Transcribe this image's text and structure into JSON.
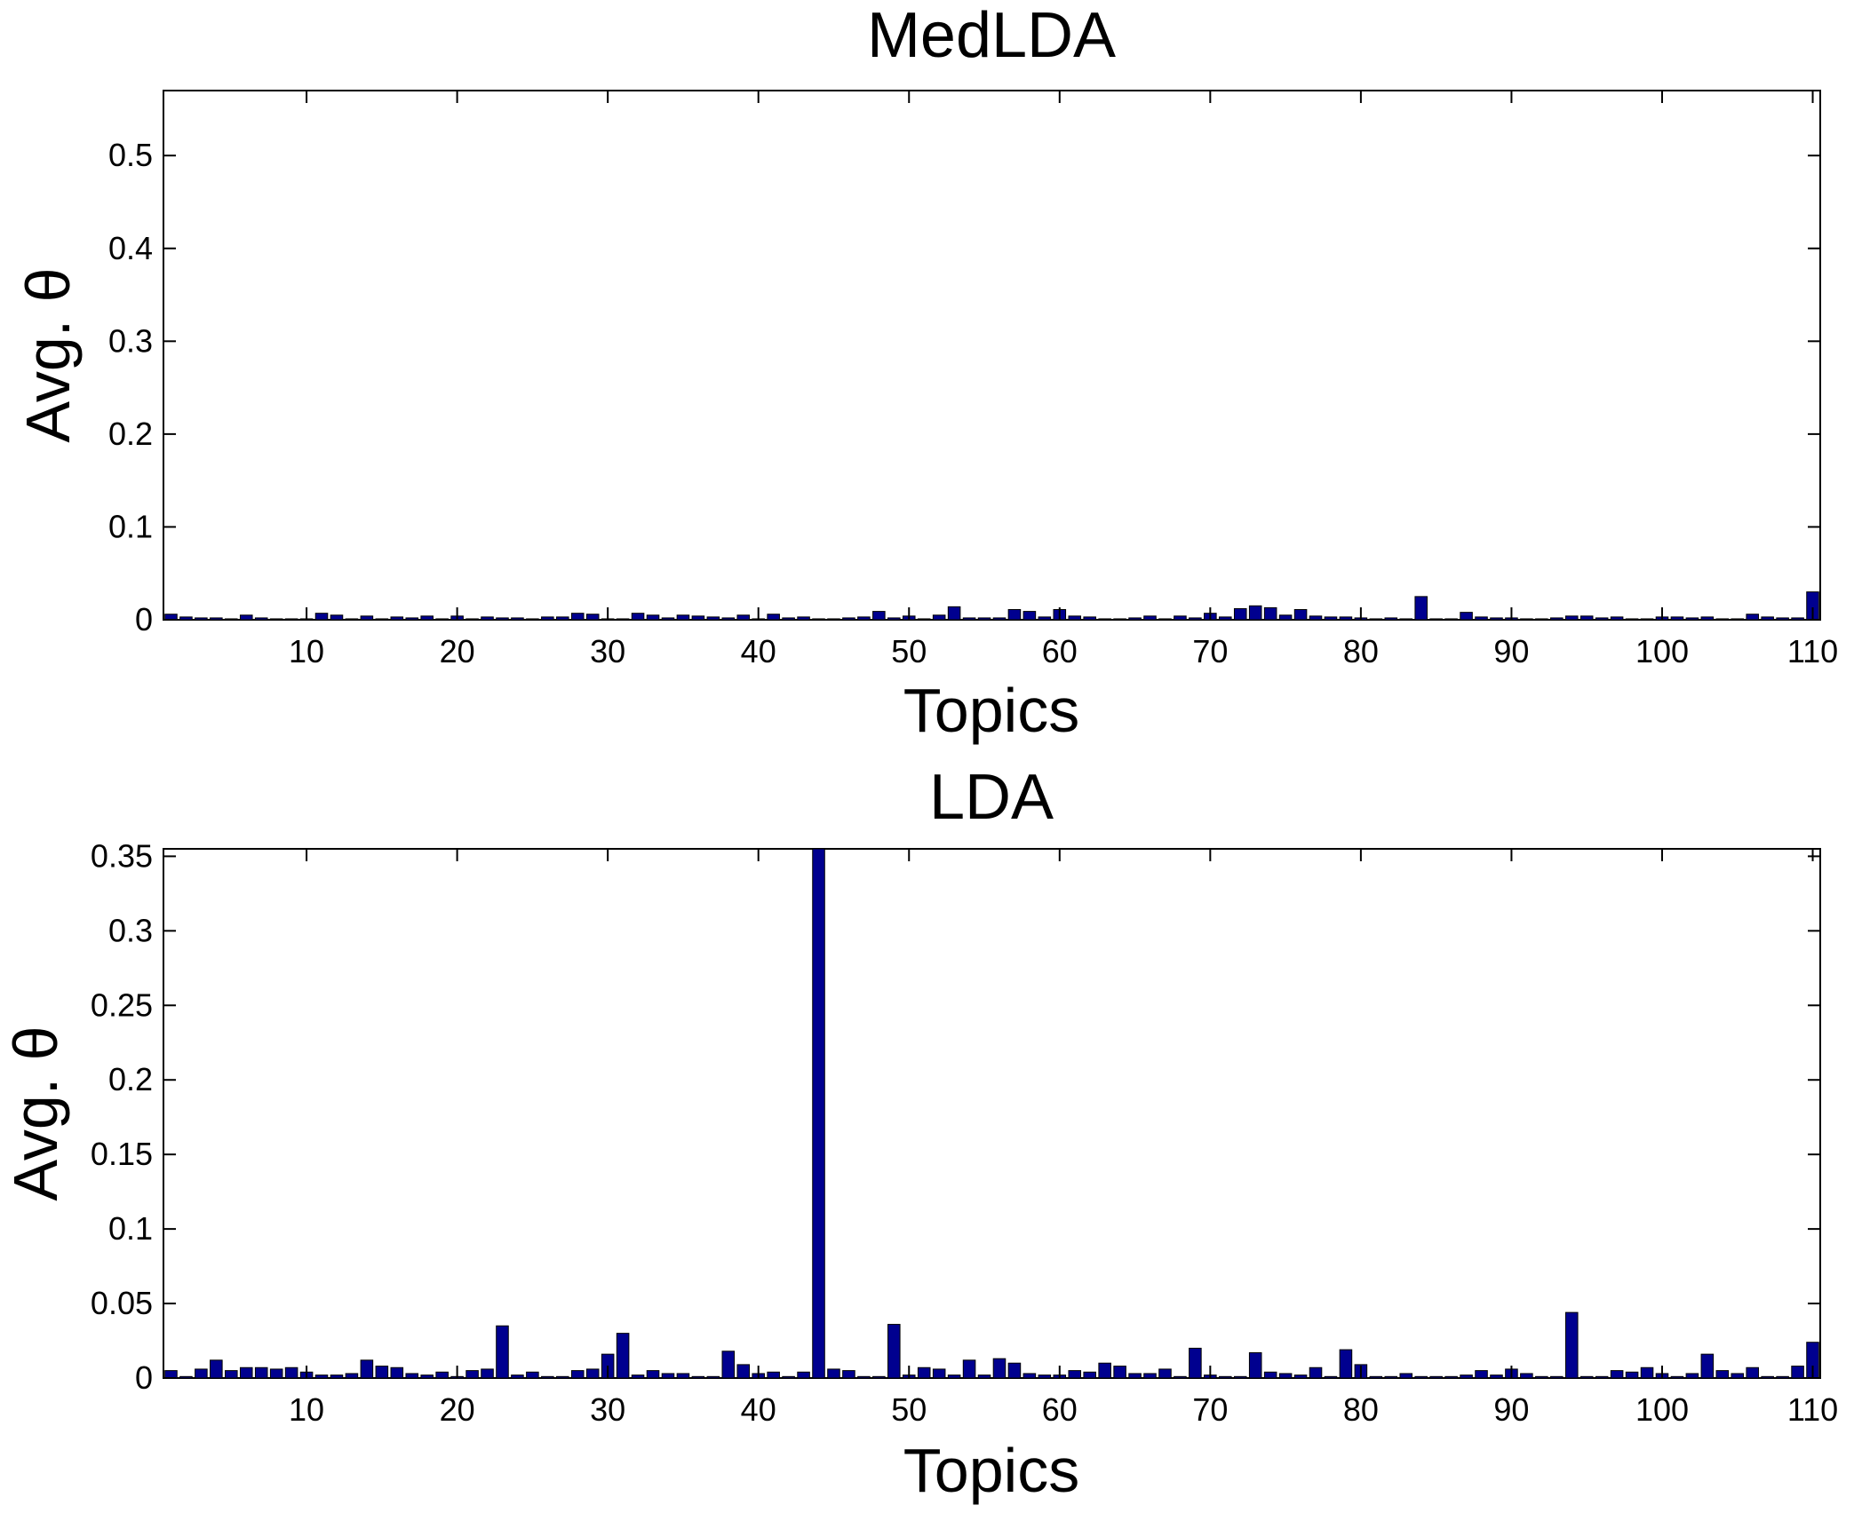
{
  "chart_data": [
    {
      "type": "bar",
      "title": "MedLDA",
      "xlabel": "Topics",
      "ylabel": "Avg. θ",
      "xlim": [
        0.5,
        110.5
      ],
      "ylim": [
        0,
        0.57
      ],
      "xticks": [
        10,
        20,
        30,
        40,
        50,
        60,
        70,
        80,
        90,
        100,
        110
      ],
      "xtick_labels": [
        "10",
        "20",
        "30",
        "40",
        "50",
        "60",
        "70",
        "80",
        "90",
        "100",
        "110"
      ],
      "yticks": [
        0,
        0.1,
        0.2,
        0.3,
        0.4,
        0.5
      ],
      "ytick_labels": [
        "0",
        "0.1",
        "0.2",
        "0.3",
        "0.4",
        "0.5"
      ],
      "grid": false,
      "bar_color": "#00008f",
      "x": [
        1,
        2,
        3,
        4,
        5,
        6,
        7,
        8,
        9,
        10,
        11,
        12,
        13,
        14,
        15,
        16,
        17,
        18,
        19,
        20,
        21,
        22,
        23,
        24,
        25,
        26,
        27,
        28,
        29,
        30,
        31,
        32,
        33,
        34,
        35,
        36,
        37,
        38,
        39,
        40,
        41,
        42,
        43,
        44,
        45,
        46,
        47,
        48,
        49,
        50,
        51,
        52,
        53,
        54,
        55,
        56,
        57,
        58,
        59,
        60,
        61,
        62,
        63,
        64,
        65,
        66,
        67,
        68,
        69,
        70,
        71,
        72,
        73,
        74,
        75,
        76,
        77,
        78,
        79,
        80,
        81,
        82,
        83,
        84,
        85,
        86,
        87,
        88,
        89,
        90,
        91,
        92,
        93,
        94,
        95,
        96,
        97,
        98,
        99,
        100,
        101,
        102,
        103,
        104,
        105,
        106,
        107,
        108,
        109,
        110
      ],
      "values": [
        0.006,
        0.003,
        0.002,
        0.002,
        0.001,
        0.005,
        0.002,
        0.001,
        0.001,
        0.001,
        0.007,
        0.005,
        0.001,
        0.004,
        0.001,
        0.003,
        0.002,
        0.004,
        0.001,
        0.004,
        0.001,
        0.003,
        0.002,
        0.002,
        0.001,
        0.003,
        0.003,
        0.007,
        0.006,
        0.001,
        0.001,
        0.007,
        0.005,
        0.002,
        0.005,
        0.004,
        0.003,
        0.002,
        0.005,
        0.001,
        0.006,
        0.002,
        0.003,
        0.001,
        0.001,
        0.002,
        0.003,
        0.009,
        0.002,
        0.004,
        0.001,
        0.005,
        0.014,
        0.002,
        0.002,
        0.002,
        0.011,
        0.009,
        0.003,
        0.011,
        0.004,
        0.003,
        0.001,
        0.001,
        0.002,
        0.004,
        0.001,
        0.004,
        0.002,
        0.007,
        0.003,
        0.012,
        0.015,
        0.013,
        0.005,
        0.011,
        0.004,
        0.003,
        0.003,
        0.002,
        0.001,
        0.002,
        0.001,
        0.025,
        0.001,
        0.001,
        0.008,
        0.003,
        0.002,
        0.002,
        0.001,
        0.001,
        0.002,
        0.004,
        0.004,
        0.002,
        0.003,
        0.001,
        0.001,
        0.003,
        0.003,
        0.002,
        0.003,
        0.001,
        0.001,
        0.006,
        0.003,
        0.002,
        0.002,
        0.03
      ]
    },
    {
      "type": "bar",
      "title": "LDA",
      "xlabel": "Topics",
      "ylabel": "Avg. θ",
      "xlim": [
        0.5,
        110.5
      ],
      "ylim": [
        0,
        0.355
      ],
      "xticks": [
        10,
        20,
        30,
        40,
        50,
        60,
        70,
        80,
        90,
        100,
        110
      ],
      "xtick_labels": [
        "10",
        "20",
        "30",
        "40",
        "50",
        "60",
        "70",
        "80",
        "90",
        "100",
        "110"
      ],
      "yticks": [
        0,
        0.05,
        0.1,
        0.15,
        0.2,
        0.25,
        0.3,
        0.35
      ],
      "ytick_labels": [
        "0",
        "0.05",
        "0.1",
        "0.15",
        "0.2",
        "0.25",
        "0.3",
        "0.35"
      ],
      "grid": false,
      "bar_color": "#00008f",
      "x": [
        1,
        2,
        3,
        4,
        5,
        6,
        7,
        8,
        9,
        10,
        11,
        12,
        13,
        14,
        15,
        16,
        17,
        18,
        19,
        20,
        21,
        22,
        23,
        24,
        25,
        26,
        27,
        28,
        29,
        30,
        31,
        32,
        33,
        34,
        35,
        36,
        37,
        38,
        39,
        40,
        41,
        42,
        43,
        44,
        45,
        46,
        47,
        48,
        49,
        50,
        51,
        52,
        53,
        54,
        55,
        56,
        57,
        58,
        59,
        60,
        61,
        62,
        63,
        64,
        65,
        66,
        67,
        68,
        69,
        70,
        71,
        72,
        73,
        74,
        75,
        76,
        77,
        78,
        79,
        80,
        81,
        82,
        83,
        84,
        85,
        86,
        87,
        88,
        89,
        90,
        91,
        92,
        93,
        94,
        95,
        96,
        97,
        98,
        99,
        100,
        101,
        102,
        103,
        104,
        105,
        106,
        107,
        108,
        109,
        110
      ],
      "values": [
        0.005,
        0.001,
        0.006,
        0.012,
        0.005,
        0.007,
        0.007,
        0.006,
        0.007,
        0.004,
        0.002,
        0.002,
        0.003,
        0.012,
        0.008,
        0.007,
        0.003,
        0.002,
        0.004,
        0.001,
        0.005,
        0.006,
        0.035,
        0.002,
        0.004,
        0.001,
        0.001,
        0.005,
        0.006,
        0.016,
        0.03,
        0.002,
        0.005,
        0.003,
        0.003,
        0.001,
        0.001,
        0.018,
        0.009,
        0.003,
        0.004,
        0.001,
        0.004,
        0.355,
        0.006,
        0.005,
        0.001,
        0.001,
        0.036,
        0.002,
        0.007,
        0.006,
        0.002,
        0.012,
        0.002,
        0.013,
        0.01,
        0.003,
        0.002,
        0.002,
        0.005,
        0.004,
        0.01,
        0.008,
        0.003,
        0.003,
        0.006,
        0.001,
        0.02,
        0.002,
        0.001,
        0.001,
        0.017,
        0.004,
        0.003,
        0.002,
        0.007,
        0.001,
        0.019,
        0.009,
        0.001,
        0.001,
        0.003,
        0.001,
        0.001,
        0.001,
        0.002,
        0.005,
        0.002,
        0.006,
        0.003,
        0.001,
        0.001,
        0.044,
        0.001,
        0.001,
        0.005,
        0.004,
        0.007,
        0.003,
        0.001,
        0.003,
        0.016,
        0.005,
        0.003,
        0.007,
        0.001,
        0.001,
        0.008,
        0.024
      ]
    }
  ]
}
